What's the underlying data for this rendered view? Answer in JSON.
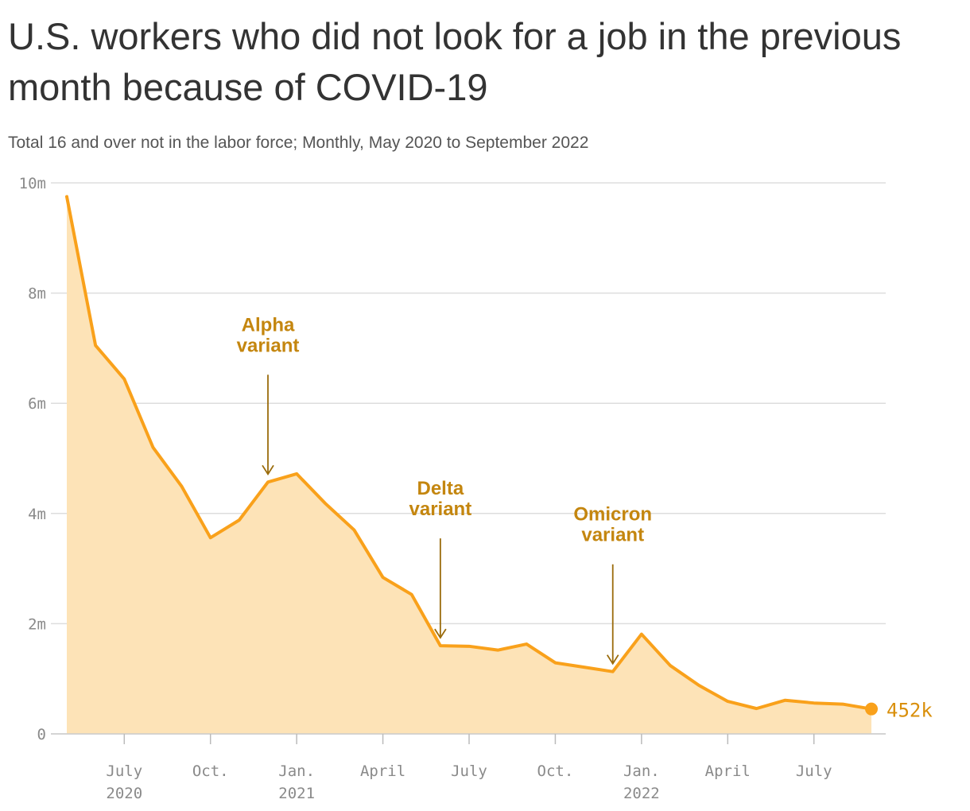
{
  "colors": {
    "line": "#f9a11b",
    "area": "#fde3b7",
    "annotation": "#c4860f",
    "arrow": "#9a6b0b",
    "grid": "#dddddd"
  },
  "chart_data": {
    "type": "area",
    "title": "U.S. workers who did not look for a job in the previous month because of COVID-19",
    "subtitle": "Total 16 and over not in the labor force; Monthly, May 2020 to September 2022",
    "xlabel": "",
    "ylabel": "",
    "grid": true,
    "ylim": [
      0,
      10000000
    ],
    "yticks": [
      {
        "value": 0,
        "label": "0"
      },
      {
        "value": 2000000,
        "label": "2m"
      },
      {
        "value": 4000000,
        "label": "4m"
      },
      {
        "value": 6000000,
        "label": "6m"
      },
      {
        "value": 8000000,
        "label": "8m"
      },
      {
        "value": 10000000,
        "label": "10m"
      }
    ],
    "xticks": [
      {
        "x": "2020-07",
        "label": "July",
        "label2": "2020"
      },
      {
        "x": "2020-10",
        "label": "Oct.",
        "label2": ""
      },
      {
        "x": "2021-01",
        "label": "Jan.",
        "label2": "2021"
      },
      {
        "x": "2021-04",
        "label": "April",
        "label2": ""
      },
      {
        "x": "2021-07",
        "label": "July",
        "label2": ""
      },
      {
        "x": "2021-10",
        "label": "Oct.",
        "label2": ""
      },
      {
        "x": "2022-01",
        "label": "Jan.",
        "label2": "2022"
      },
      {
        "x": "2022-04",
        "label": "April",
        "label2": ""
      },
      {
        "x": "2022-07",
        "label": "July",
        "label2": ""
      }
    ],
    "x": [
      "2020-05",
      "2020-06",
      "2020-07",
      "2020-08",
      "2020-09",
      "2020-10",
      "2020-11",
      "2020-12",
      "2021-01",
      "2021-02",
      "2021-03",
      "2021-04",
      "2021-05",
      "2021-06",
      "2021-07",
      "2021-08",
      "2021-09",
      "2021-10",
      "2021-11",
      "2021-12",
      "2022-01",
      "2022-02",
      "2022-03",
      "2022-04",
      "2022-05",
      "2022-06",
      "2022-07",
      "2022-08",
      "2022-09"
    ],
    "values": [
      9750000,
      7050000,
      6440000,
      5200000,
      4490000,
      3560000,
      3880000,
      4570000,
      4720000,
      4180000,
      3700000,
      2840000,
      2530000,
      1600000,
      1590000,
      1520000,
      1630000,
      1290000,
      1210000,
      1130000,
      1810000,
      1240000,
      880000,
      590000,
      460000,
      610000,
      560000,
      540000,
      452000
    ],
    "end_label": "452k",
    "annotations": [
      {
        "x": "2020-12",
        "lines": [
          "Alpha",
          "variant"
        ]
      },
      {
        "x": "2021-06",
        "lines": [
          "Delta",
          "variant"
        ]
      },
      {
        "x": "2021-12",
        "lines": [
          "Omicron",
          "variant"
        ]
      }
    ]
  }
}
